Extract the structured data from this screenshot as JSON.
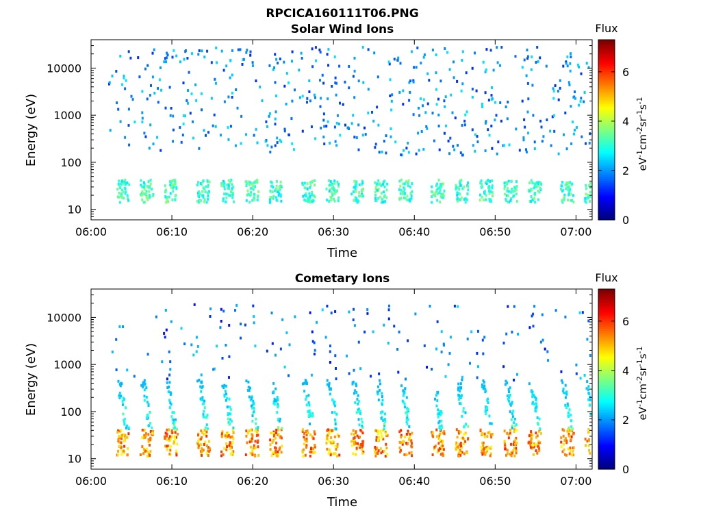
{
  "figure": {
    "filename": "RPCICA160111T06.PNG"
  },
  "chart_data": [
    {
      "type": "heatmap",
      "title": "Solar Wind Ions",
      "xlabel": "Time",
      "ylabel": "Energy (eV)",
      "yscale": "log",
      "xlim": [
        "06:00",
        "07:02"
      ],
      "ylim": [
        6,
        40000
      ],
      "x_ticks": [
        "06:00",
        "06:10",
        "06:20",
        "06:30",
        "06:40",
        "06:50",
        "07:00"
      ],
      "y_ticks": [
        "10",
        "100",
        "1000",
        "10000"
      ],
      "colorbar": {
        "label": "Flux",
        "unit": "eV-1cm-2sr-1s-1",
        "range": [
          0,
          7.3
        ],
        "ticks": [
          "0",
          "2",
          "4",
          "6"
        ],
        "colormap": "jet"
      },
      "sweep_period_min": 3.2,
      "sweep_start_times": [
        "06:03",
        "06:06",
        "06:09",
        "06:13",
        "06:16",
        "06:19",
        "06:22",
        "06:26",
        "06:29",
        "06:32",
        "06:35",
        "06:38",
        "06:42",
        "06:45",
        "06:48",
        "06:51",
        "06:54",
        "06:58",
        "07:01"
      ],
      "bands": [
        {
          "feature": "dense low-energy cores",
          "energy_eV": [
            15,
            45
          ],
          "flux": [
            2.5,
            3.8
          ]
        },
        {
          "feature": "sparse background",
          "energy_eV": [
            150,
            30000
          ],
          "flux": [
            1.2,
            2.6
          ]
        }
      ]
    },
    {
      "type": "heatmap",
      "title": "Cometary Ions",
      "xlabel": "Time",
      "ylabel": "Energy (eV)",
      "yscale": "log",
      "xlim": [
        "06:00",
        "07:02"
      ],
      "ylim": [
        6,
        40000
      ],
      "x_ticks": [
        "06:00",
        "06:10",
        "06:20",
        "06:30",
        "06:40",
        "06:50",
        "07:00"
      ],
      "y_ticks": [
        "10",
        "100",
        "1000",
        "10000"
      ],
      "colorbar": {
        "label": "Flux",
        "unit": "eV-1cm-2sr-1s-1",
        "range": [
          0,
          7.3
        ],
        "ticks": [
          "0",
          "2",
          "4",
          "6"
        ],
        "colormap": "jet"
      },
      "sweep_period_min": 3.2,
      "sweep_start_times": [
        "06:03",
        "06:06",
        "06:09",
        "06:13",
        "06:16",
        "06:19",
        "06:22",
        "06:26",
        "06:29",
        "06:32",
        "06:35",
        "06:38",
        "06:42",
        "06:45",
        "06:48",
        "06:51",
        "06:54",
        "06:58",
        "07:01"
      ],
      "bands": [
        {
          "feature": "intense low-energy cores",
          "energy_eV": [
            12,
            45
          ],
          "flux": [
            4.5,
            6.2
          ]
        },
        {
          "feature": "dispersed tails",
          "energy_eV": [
            45,
            500
          ],
          "flux": [
            2.2,
            3.8
          ]
        },
        {
          "feature": "sparse background",
          "energy_eV": [
            500,
            20000
          ],
          "flux": [
            1.0,
            2.5
          ]
        }
      ]
    }
  ]
}
